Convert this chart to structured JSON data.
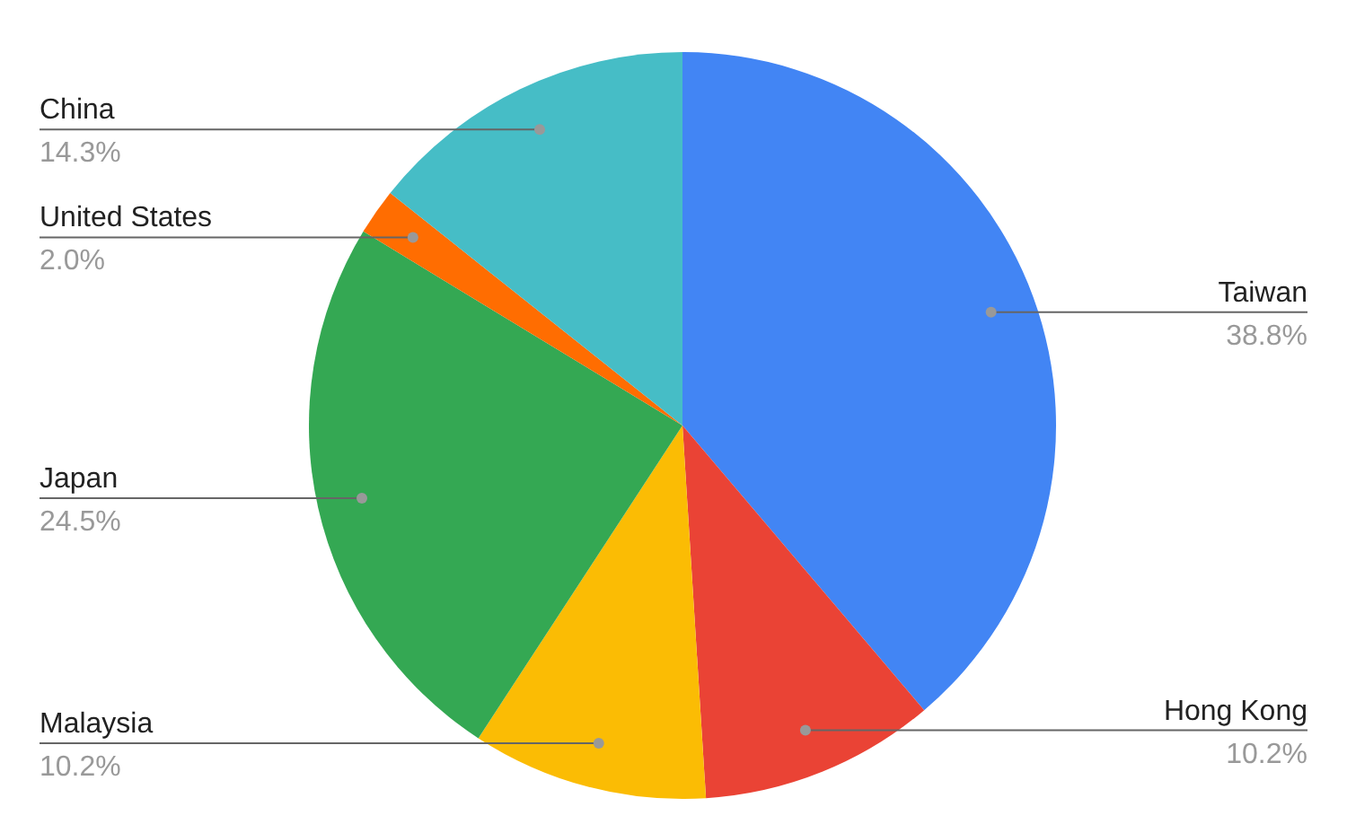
{
  "chart_data": {
    "type": "pie",
    "categories": [
      "Taiwan",
      "Hong Kong",
      "Malaysia",
      "Japan",
      "United States",
      "China"
    ],
    "values": [
      38.8,
      10.2,
      10.2,
      24.5,
      2.0,
      14.3
    ],
    "value_labels": [
      "38.8%",
      "10.2%",
      "10.2%",
      "24.5%",
      "2.0%",
      "14.3%"
    ],
    "colors": [
      "#4285f4",
      "#ea4335",
      "#fbbc04",
      "#34a853",
      "#ff6d01",
      "#46bdc6"
    ]
  }
}
